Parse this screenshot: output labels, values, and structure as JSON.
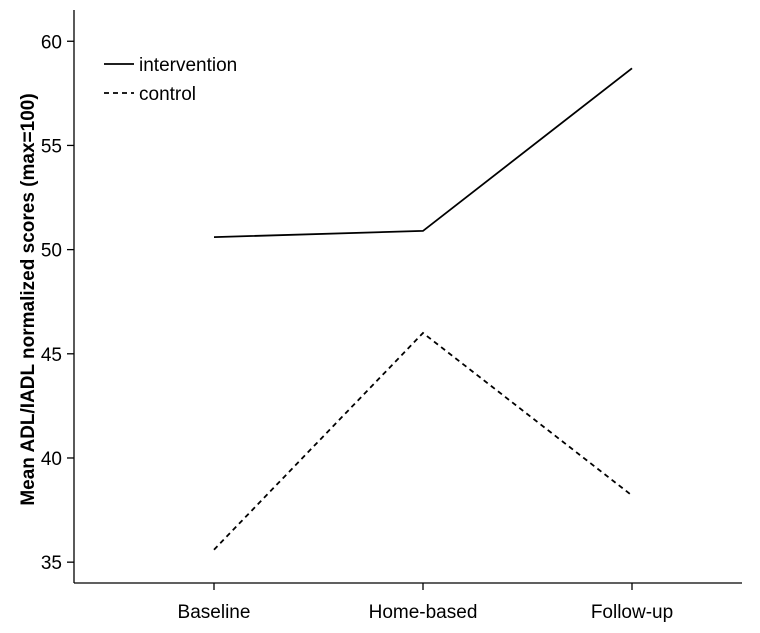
{
  "chart_data": {
    "type": "line",
    "title": "",
    "xlabel": "",
    "ylabel": "Mean ADL/IADL normalized scores (max=100)",
    "categories": [
      "Baseline",
      "Home-based",
      "Follow-up"
    ],
    "ylim": [
      34,
      61.5
    ],
    "yticks": [
      35,
      40,
      45,
      50,
      55,
      60
    ],
    "grid": false,
    "legend_position": "top-left",
    "series": [
      {
        "name": "intervention",
        "values": [
          50.6,
          50.9,
          58.7
        ],
        "style": "solid",
        "color": "#000000"
      },
      {
        "name": "control",
        "values": [
          35.6,
          46.0,
          38.2
        ],
        "style": "dashed",
        "color": "#000000"
      }
    ]
  }
}
